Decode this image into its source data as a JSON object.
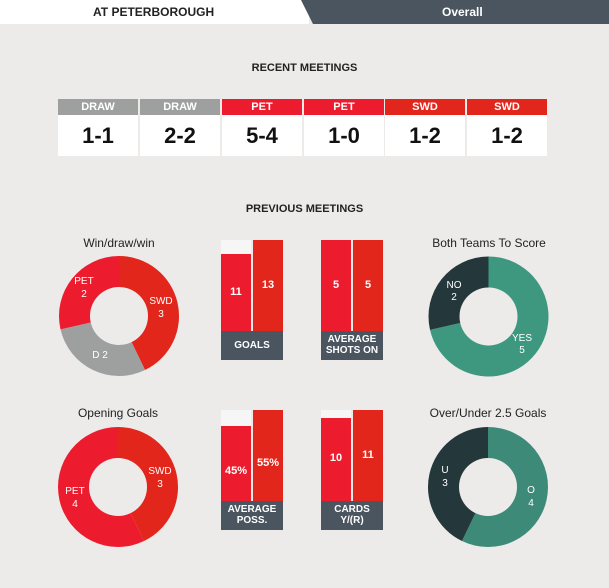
{
  "tabs": {
    "left": "AT PETERBOROUGH",
    "right": "Overall"
  },
  "colors": {
    "pet_red": "#ec1c2e",
    "swd_red": "#e2261b",
    "draw_grey": "#9ea09f",
    "dark_teal": "#24373a",
    "teal": "#3e9880",
    "caption_slate": "#4a5560"
  },
  "recent": {
    "title": "RECENT MEETINGS",
    "meetings": [
      {
        "label": "DRAW",
        "score": "1-1",
        "color": "#9ea09f"
      },
      {
        "label": "DRAW",
        "score": "2-2",
        "color": "#9ea09f"
      },
      {
        "label": "PET",
        "score": "5-4",
        "color": "#ec1c2e"
      },
      {
        "label": "PET",
        "score": "1-0",
        "color": "#ec1c2e"
      },
      {
        "label": "SWD",
        "score": "1-2",
        "color": "#e2261b"
      },
      {
        "label": "SWD",
        "score": "1-2",
        "color": "#e2261b"
      }
    ]
  },
  "previous": {
    "title": "PREVIOUS MEETINGS",
    "win_draw_win": {
      "title": "Win/draw/win",
      "pet_label": "PET",
      "pet_value": "2",
      "swd_label": "SWD",
      "swd_value": "3",
      "draw_label": "D 2"
    },
    "goals": {
      "pet": "11",
      "swd": "13",
      "caption": "GOALS",
      "pet_fraction": 0.846,
      "swd_fraction": 1.0
    },
    "shots": {
      "pet": "5",
      "swd": "5",
      "caption_line1": "AVERAGE",
      "caption_line2": "SHOTS ON",
      "pet_fraction": 1.0,
      "swd_fraction": 1.0
    },
    "btts": {
      "title": "Both Teams To Score",
      "no_label": "NO",
      "no_value": "2",
      "yes_label": "YES",
      "yes_value": "5"
    },
    "opening_goals": {
      "title": "Opening Goals",
      "pet_label": "PET",
      "pet_value": "4",
      "swd_label": "SWD",
      "swd_value": "3"
    },
    "possession": {
      "pet": "45%",
      "swd": "55%",
      "caption_line1": "AVERAGE",
      "caption_line2": "POSS.",
      "pet_fraction": 0.82,
      "swd_fraction": 1.0
    },
    "cards": {
      "pet": "10",
      "swd": "11",
      "caption_line1": "CARDS",
      "caption_line2": "Y/(R)",
      "pet_fraction": 0.909,
      "swd_fraction": 1.0
    },
    "over_under": {
      "title": "Over/Under 2.5 Goals",
      "u_label": "U",
      "u_value": "3",
      "o_label": "O",
      "o_value": "4"
    }
  }
}
